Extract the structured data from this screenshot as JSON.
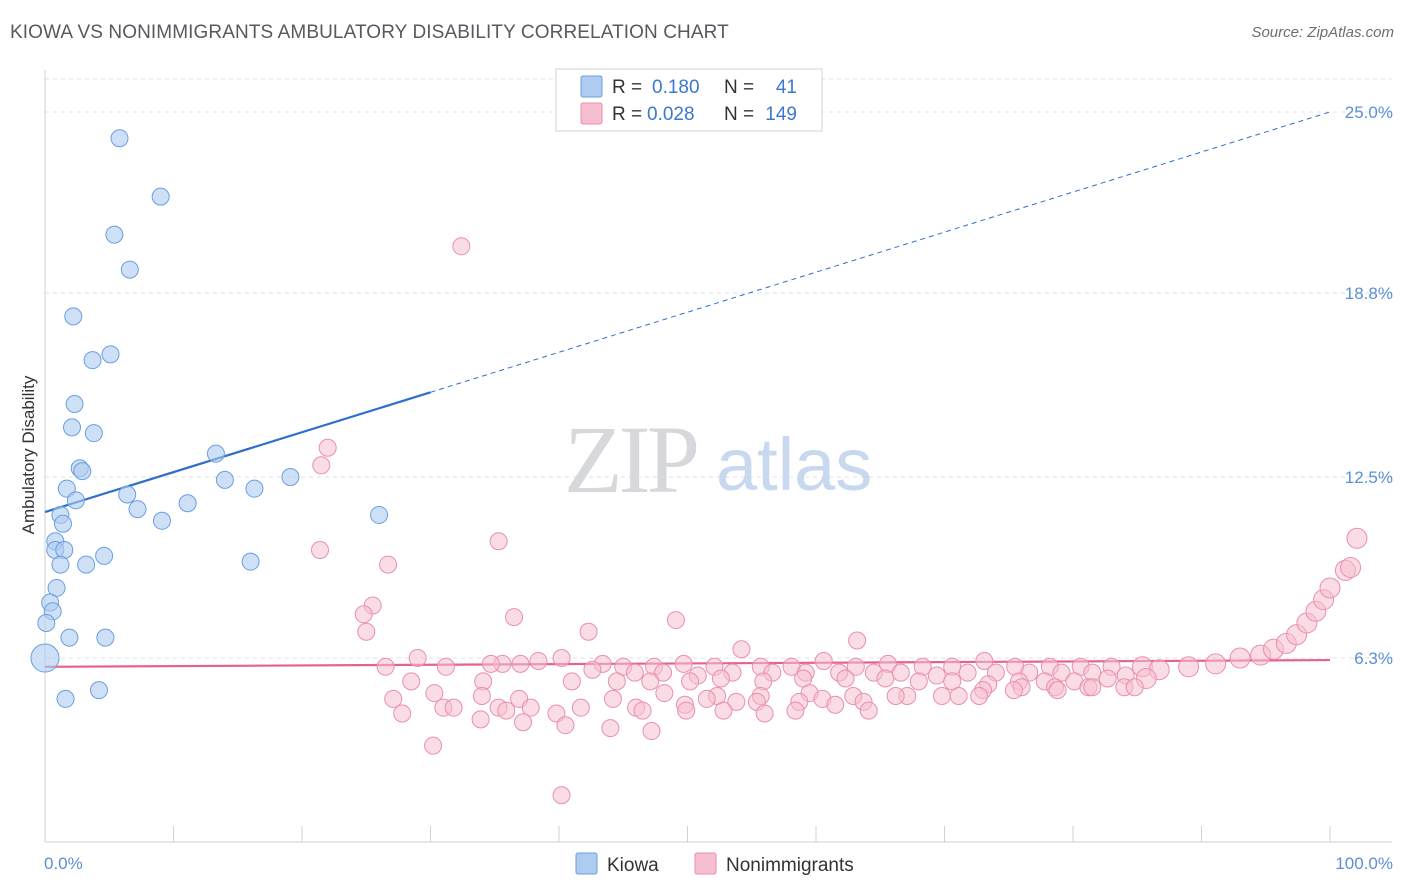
{
  "title": "KIOWA VS NONIMMIGRANTS AMBULATORY DISABILITY CORRELATION CHART",
  "source": "Source: ZipAtlas.com",
  "watermark": {
    "zip": "ZIP",
    "atlas": "atlas"
  },
  "legend": {
    "kiowa": {
      "r_label": "R =",
      "r_value": "0.180",
      "n_label": "N =",
      "n_value": "41"
    },
    "nonimmigrants": {
      "r_label": "R =",
      "r_value": "0.028",
      "n_label": "N =",
      "n_value": "149"
    }
  },
  "colors": {
    "kiowa_fill": "#aecbf0",
    "kiowa_stroke": "#6a9fe0",
    "kiowa_line": "#2f6fcb",
    "non_fill": "#f6bfd0",
    "non_stroke": "#ea8fae",
    "non_line": "#e5628e",
    "tick_label": "#5b8fd6",
    "grid": "#dde0e4"
  },
  "chart_data": {
    "type": "scatter",
    "title": "KIOWA VS NONIMMIGRANTS AMBULATORY DISABILITY CORRELATION CHART",
    "xlabel": "",
    "ylabel": "Ambulatory Disability",
    "xlim": [
      0,
      100
    ],
    "ylim": [
      0,
      26.3
    ],
    "x_tick_labels": [
      "0.0%",
      "100.0%"
    ],
    "y_ticks": [
      6.3,
      12.5,
      18.8,
      25.0
    ],
    "y_tick_labels": [
      "6.3%",
      "12.5%",
      "18.8%",
      "25.0%"
    ],
    "grid": true,
    "legend_position": "top-center",
    "series": [
      {
        "name": "Kiowa",
        "trend": {
          "x0": 0,
          "y0": 11.3,
          "x1": 30,
          "y1": 15.4,
          "extend_to_x": 100,
          "extend_to_y": 25.0
        },
        "points": [
          [
            5.8,
            24.1
          ],
          [
            9.0,
            22.1
          ],
          [
            5.4,
            20.8
          ],
          [
            6.6,
            19.6
          ],
          [
            2.2,
            18.0
          ],
          [
            5.1,
            16.7
          ],
          [
            3.7,
            16.5
          ],
          [
            2.3,
            15.0
          ],
          [
            2.1,
            14.2
          ],
          [
            3.8,
            14.0
          ],
          [
            13.3,
            13.3
          ],
          [
            2.7,
            12.8
          ],
          [
            2.9,
            12.7
          ],
          [
            14.0,
            12.4
          ],
          [
            19.1,
            12.5
          ],
          [
            1.7,
            12.1
          ],
          [
            16.3,
            12.1
          ],
          [
            6.4,
            11.9
          ],
          [
            2.4,
            11.7
          ],
          [
            11.1,
            11.6
          ],
          [
            7.2,
            11.4
          ],
          [
            1.2,
            11.2
          ],
          [
            26.0,
            11.2
          ],
          [
            9.1,
            11.0
          ],
          [
            1.4,
            10.9
          ],
          [
            0.8,
            10.3
          ],
          [
            0.8,
            10.0
          ],
          [
            1.5,
            10.0
          ],
          [
            4.6,
            9.8
          ],
          [
            16.0,
            9.6
          ],
          [
            1.2,
            9.5
          ],
          [
            3.2,
            9.5
          ],
          [
            0.9,
            8.7
          ],
          [
            0.4,
            8.2
          ],
          [
            0.6,
            7.9
          ],
          [
            0.1,
            7.5
          ],
          [
            1.9,
            7.0
          ],
          [
            4.7,
            7.0
          ],
          [
            0.0,
            6.3
          ],
          [
            4.2,
            5.2
          ],
          [
            1.6,
            4.9
          ]
        ]
      },
      {
        "name": "Nonimmigrants",
        "trend": {
          "x0": 0,
          "y0": 6.0,
          "x1": 100,
          "y1": 6.23
        },
        "points": [
          [
            32.4,
            20.4
          ],
          [
            22.0,
            13.5
          ],
          [
            21.5,
            12.9
          ],
          [
            35.3,
            10.3
          ],
          [
            21.4,
            10.0
          ],
          [
            26.7,
            9.5
          ],
          [
            25.5,
            8.1
          ],
          [
            24.8,
            7.8
          ],
          [
            36.5,
            7.7
          ],
          [
            49.1,
            7.6
          ],
          [
            25.0,
            7.2
          ],
          [
            42.3,
            7.2
          ],
          [
            63.2,
            6.9
          ],
          [
            54.2,
            6.6
          ],
          [
            29.0,
            6.3
          ],
          [
            38.4,
            6.2
          ],
          [
            40.2,
            6.3
          ],
          [
            43.4,
            6.1
          ],
          [
            35.6,
            6.1
          ],
          [
            37.0,
            6.1
          ],
          [
            26.5,
            6.0
          ],
          [
            31.2,
            6.0
          ],
          [
            34.7,
            6.1
          ],
          [
            45.0,
            6.0
          ],
          [
            47.4,
            6.0
          ],
          [
            49.7,
            6.1
          ],
          [
            52.1,
            6.0
          ],
          [
            55.7,
            6.0
          ],
          [
            58.1,
            6.0
          ],
          [
            60.6,
            6.2
          ],
          [
            63.1,
            6.0
          ],
          [
            65.6,
            6.1
          ],
          [
            68.3,
            6.0
          ],
          [
            70.6,
            6.0
          ],
          [
            73.1,
            6.2
          ],
          [
            75.5,
            6.0
          ],
          [
            78.2,
            6.0
          ],
          [
            80.6,
            6.0
          ],
          [
            83.0,
            6.0
          ],
          [
            85.4,
            6.0
          ],
          [
            42.6,
            5.9
          ],
          [
            45.9,
            5.8
          ],
          [
            48.1,
            5.8
          ],
          [
            50.8,
            5.7
          ],
          [
            53.5,
            5.8
          ],
          [
            56.6,
            5.8
          ],
          [
            59.2,
            5.8
          ],
          [
            61.8,
            5.8
          ],
          [
            64.5,
            5.8
          ],
          [
            66.6,
            5.8
          ],
          [
            69.4,
            5.7
          ],
          [
            71.8,
            5.8
          ],
          [
            74.0,
            5.8
          ],
          [
            76.6,
            5.8
          ],
          [
            79.1,
            5.8
          ],
          [
            81.5,
            5.8
          ],
          [
            84.1,
            5.7
          ],
          [
            86.7,
            5.9
          ],
          [
            89.0,
            6.0
          ],
          [
            91.1,
            6.1
          ],
          [
            93.0,
            6.3
          ],
          [
            94.6,
            6.4
          ],
          [
            95.6,
            6.6
          ],
          [
            96.6,
            6.8
          ],
          [
            97.4,
            7.1
          ],
          [
            98.2,
            7.5
          ],
          [
            98.9,
            7.9
          ],
          [
            99.5,
            8.3
          ],
          [
            100.0,
            8.7
          ],
          [
            101.2,
            9.3
          ],
          [
            101.6,
            9.4
          ],
          [
            102.1,
            10.4
          ],
          [
            28.5,
            5.5
          ],
          [
            34.1,
            5.5
          ],
          [
            41.0,
            5.5
          ],
          [
            44.5,
            5.5
          ],
          [
            47.1,
            5.5
          ],
          [
            50.2,
            5.5
          ],
          [
            52.6,
            5.6
          ],
          [
            55.9,
            5.5
          ],
          [
            59.0,
            5.6
          ],
          [
            62.3,
            5.6
          ],
          [
            65.4,
            5.6
          ],
          [
            68.0,
            5.5
          ],
          [
            70.6,
            5.5
          ],
          [
            73.4,
            5.4
          ],
          [
            75.8,
            5.5
          ],
          [
            77.8,
            5.5
          ],
          [
            80.1,
            5.5
          ],
          [
            82.7,
            5.6
          ],
          [
            85.7,
            5.6
          ],
          [
            27.1,
            4.9
          ],
          [
            30.3,
            5.1
          ],
          [
            34.0,
            5.0
          ],
          [
            36.9,
            4.9
          ],
          [
            44.2,
            4.9
          ],
          [
            48.2,
            5.1
          ],
          [
            52.3,
            5.0
          ],
          [
            55.7,
            5.0
          ],
          [
            59.5,
            5.1
          ],
          [
            62.9,
            5.0
          ],
          [
            67.1,
            5.0
          ],
          [
            71.1,
            5.0
          ],
          [
            73.0,
            5.2
          ],
          [
            76.0,
            5.3
          ],
          [
            78.6,
            5.3
          ],
          [
            81.2,
            5.3
          ],
          [
            84.0,
            5.3
          ],
          [
            31.0,
            4.6
          ],
          [
            35.3,
            4.6
          ],
          [
            37.8,
            4.6
          ],
          [
            41.7,
            4.6
          ],
          [
            46.0,
            4.6
          ],
          [
            49.8,
            4.7
          ],
          [
            51.5,
            4.9
          ],
          [
            53.8,
            4.8
          ],
          [
            55.4,
            4.8
          ],
          [
            58.7,
            4.8
          ],
          [
            60.5,
            4.9
          ],
          [
            63.7,
            4.8
          ],
          [
            66.2,
            5.0
          ],
          [
            69.8,
            5.0
          ],
          [
            72.7,
            5.0
          ],
          [
            75.4,
            5.2
          ],
          [
            78.8,
            5.2
          ],
          [
            81.5,
            5.3
          ],
          [
            84.8,
            5.3
          ],
          [
            27.8,
            4.4
          ],
          [
            31.8,
            4.6
          ],
          [
            35.9,
            4.5
          ],
          [
            39.8,
            4.4
          ],
          [
            46.5,
            4.5
          ],
          [
            49.9,
            4.5
          ],
          [
            52.8,
            4.5
          ],
          [
            56.0,
            4.4
          ],
          [
            58.4,
            4.5
          ],
          [
            61.5,
            4.7
          ],
          [
            64.1,
            4.5
          ],
          [
            40.5,
            4.0
          ],
          [
            44.0,
            3.9
          ],
          [
            47.2,
            3.8
          ],
          [
            30.2,
            3.3
          ],
          [
            33.9,
            4.2
          ],
          [
            37.2,
            4.1
          ],
          [
            40.2,
            1.6
          ]
        ]
      }
    ]
  },
  "bottom_legend": [
    "Kiowa",
    "Nonimmigrants"
  ]
}
